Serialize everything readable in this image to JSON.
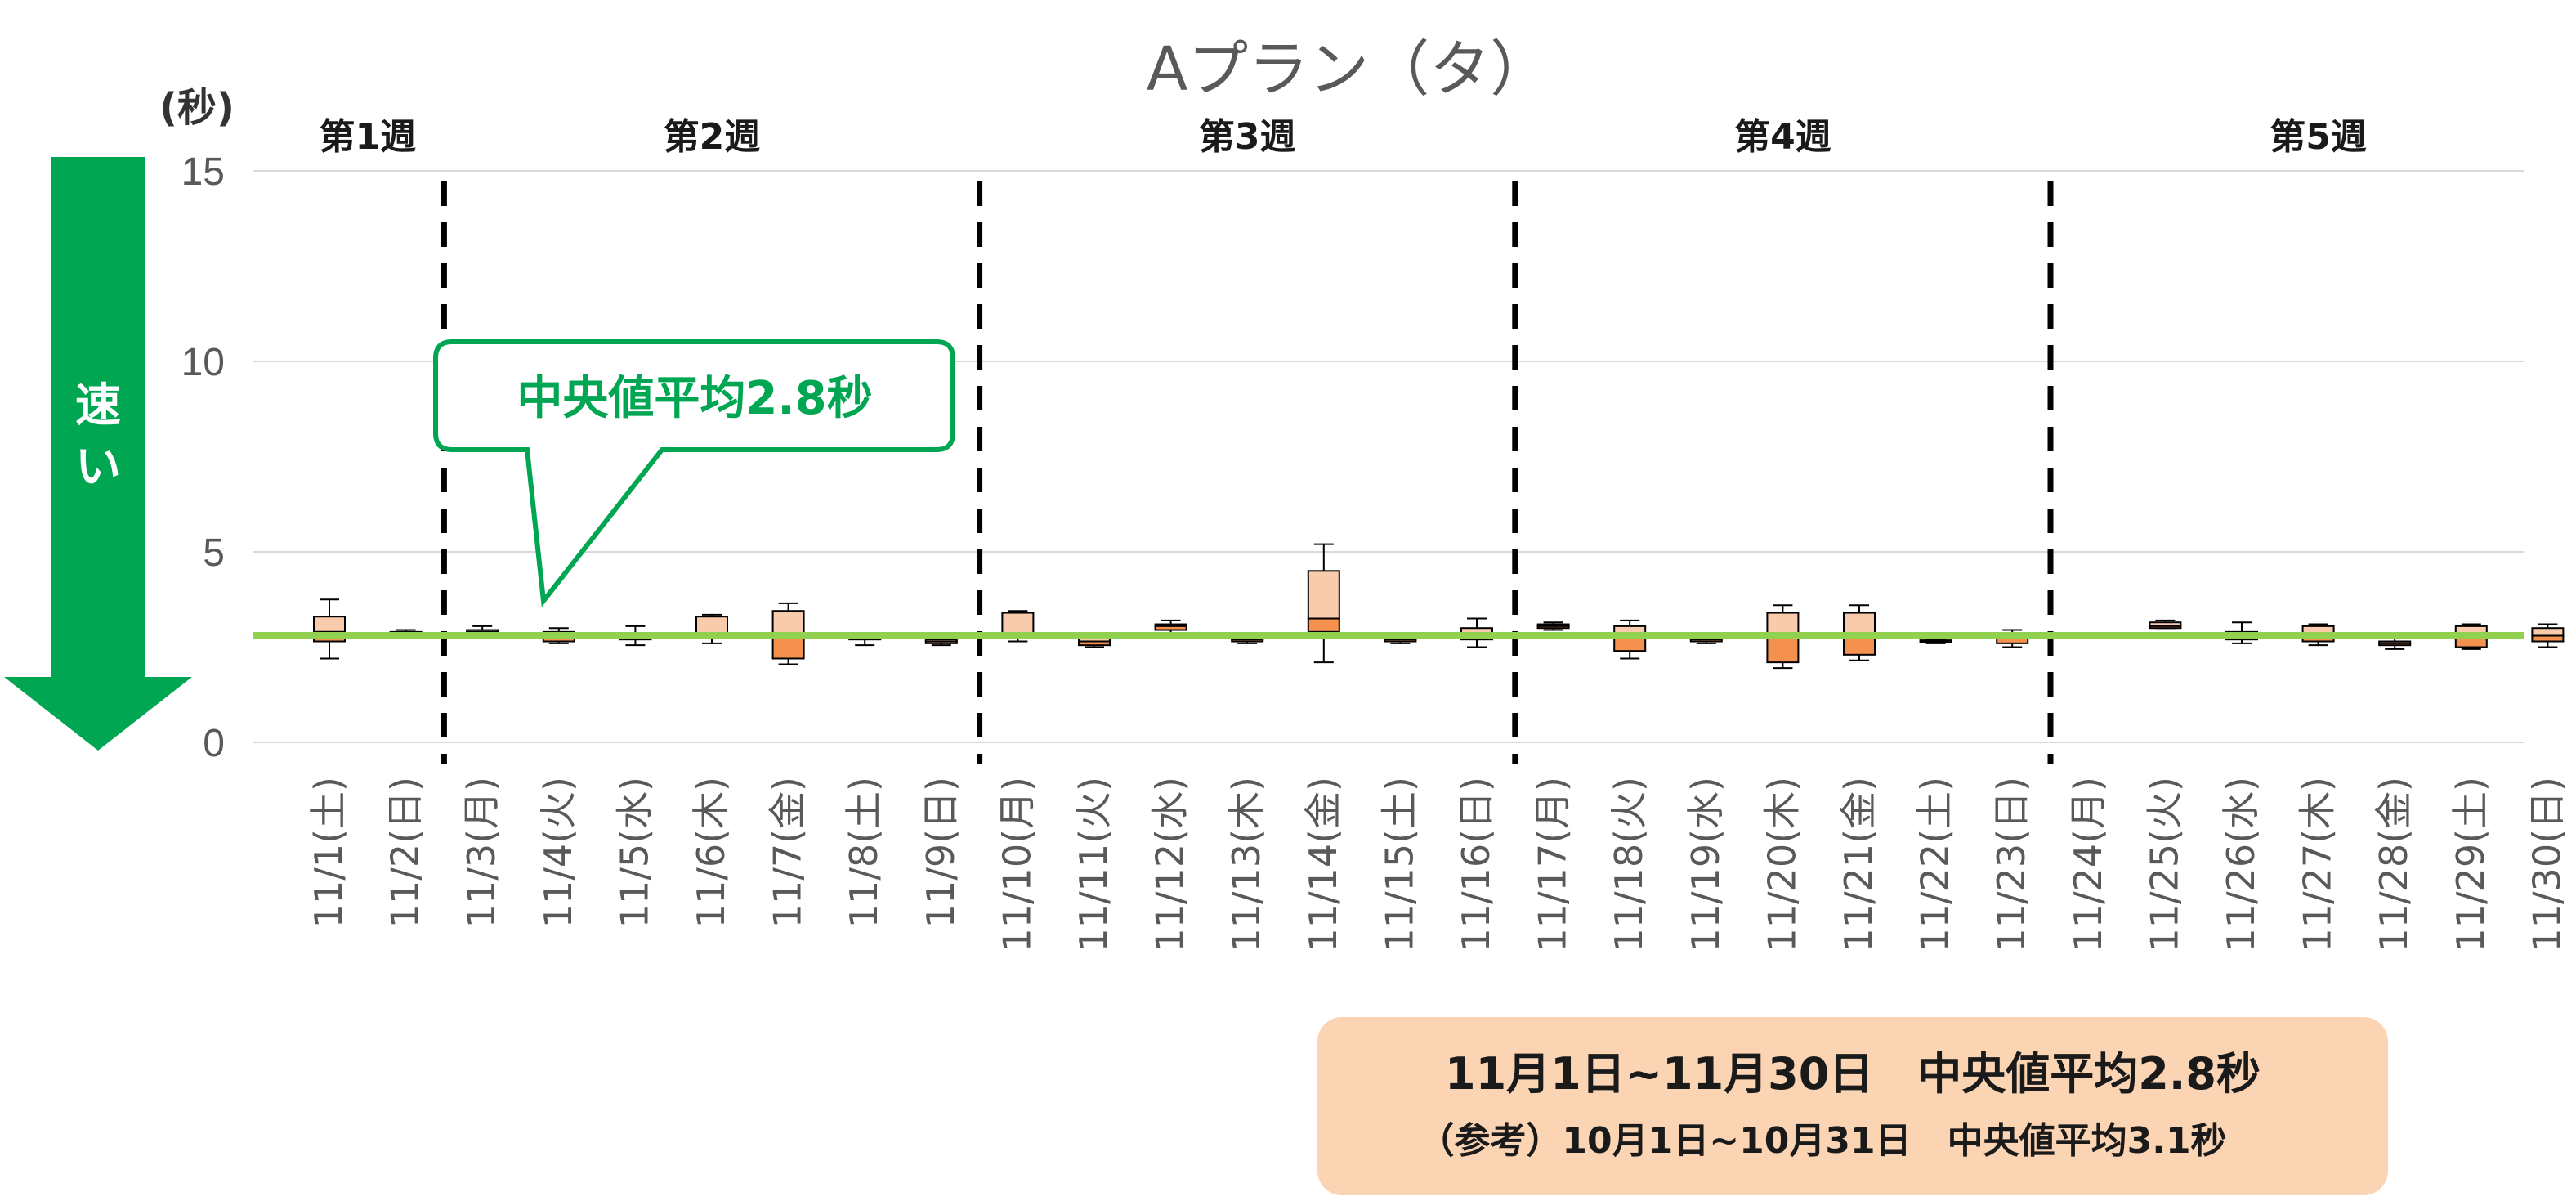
{
  "chart_data": {
    "type": "box",
    "title": "Aプラン（タ）",
    "ylabel": "(秒)",
    "ylim": [
      0,
      15
    ],
    "yticks": [
      "0",
      "5",
      "10",
      "15"
    ],
    "grid": true,
    "categories": [
      "11/1(土)",
      "11/2(日)",
      "11/3(月)",
      "11/4(火)",
      "11/5(水)",
      "11/6(木)",
      "11/7(金)",
      "11/8(土)",
      "11/9(日)",
      "11/10(月)",
      "11/11(火)",
      "11/12(水)",
      "11/13(木)",
      "11/14(金)",
      "11/15(土)",
      "11/16(日)",
      "11/17(月)",
      "11/18(火)",
      "11/19(水)",
      "11/20(木)",
      "11/21(金)",
      "11/22(土)",
      "11/23(日)",
      "11/24(月)",
      "11/25(火)",
      "11/26(水)",
      "11/27(木)",
      "11/28(金)",
      "11/29(土)",
      "11/30(日)"
    ],
    "boxes": [
      {
        "min": 2.2,
        "q1": 2.65,
        "median": 2.9,
        "q3": 3.3,
        "max": 3.75
      },
      {
        "min": 2.75,
        "q1": 2.8,
        "median": 2.85,
        "q3": 2.9,
        "max": 2.95
      },
      {
        "min": 2.75,
        "q1": 2.85,
        "median": 2.9,
        "q3": 2.95,
        "max": 3.05
      },
      {
        "min": 2.6,
        "q1": 2.65,
        "median": 2.8,
        "q3": 2.9,
        "max": 3.0
      },
      {
        "min": 2.55,
        "q1": 2.7,
        "median": 2.8,
        "q3": 2.85,
        "max": 3.05
      },
      {
        "min": 2.6,
        "q1": 2.75,
        "median": 2.85,
        "q3": 3.3,
        "max": 3.35
      },
      {
        "min": 2.05,
        "q1": 2.2,
        "median": 2.85,
        "q3": 3.45,
        "max": 3.65
      },
      {
        "min": 2.55,
        "q1": 2.7,
        "median": 2.75,
        "q3": 2.8,
        "max": 2.85
      },
      {
        "min": 2.55,
        "q1": 2.6,
        "median": 2.65,
        "q3": 2.7,
        "max": 2.75
      },
      {
        "min": 2.65,
        "q1": 2.75,
        "median": 2.85,
        "q3": 3.4,
        "max": 3.45
      },
      {
        "min": 2.5,
        "q1": 2.55,
        "median": 2.65,
        "q3": 2.8,
        "max": 2.85
      },
      {
        "min": 2.85,
        "q1": 2.95,
        "median": 3.05,
        "q3": 3.1,
        "max": 3.2
      },
      {
        "min": 2.6,
        "q1": 2.65,
        "median": 2.7,
        "q3": 2.75,
        "max": 2.8
      },
      {
        "min": 2.1,
        "q1": 2.9,
        "median": 3.25,
        "q3": 4.5,
        "max": 5.2
      },
      {
        "min": 2.6,
        "q1": 2.65,
        "median": 2.7,
        "q3": 2.75,
        "max": 2.8
      },
      {
        "min": 2.5,
        "q1": 2.7,
        "median": 2.85,
        "q3": 3.0,
        "max": 3.25
      },
      {
        "min": 2.95,
        "q1": 3.0,
        "median": 3.05,
        "q3": 3.1,
        "max": 3.15
      },
      {
        "min": 2.2,
        "q1": 2.4,
        "median": 2.75,
        "q3": 3.05,
        "max": 3.2
      },
      {
        "min": 2.6,
        "q1": 2.65,
        "median": 2.7,
        "q3": 2.75,
        "max": 2.8
      },
      {
        "min": 1.95,
        "q1": 2.1,
        "median": 2.85,
        "q3": 3.4,
        "max": 3.6
      },
      {
        "min": 2.15,
        "q1": 2.3,
        "median": 2.85,
        "q3": 3.4,
        "max": 3.6
      },
      {
        "min": 2.6,
        "q1": 2.62,
        "median": 2.65,
        "q3": 2.68,
        "max": 2.7
      },
      {
        "min": 2.5,
        "q1": 2.6,
        "median": 2.75,
        "q3": 2.85,
        "max": 2.95
      },
      null,
      {
        "min": 3.0,
        "q1": 3.0,
        "median": 3.05,
        "q3": 3.15,
        "max": 3.2
      },
      {
        "min": 2.6,
        "q1": 2.7,
        "median": 2.8,
        "q3": 2.9,
        "max": 3.15
      },
      {
        "min": 2.55,
        "q1": 2.65,
        "median": 2.85,
        "q3": 3.05,
        "max": 3.1
      },
      {
        "min": 2.45,
        "q1": 2.55,
        "median": 2.6,
        "q3": 2.65,
        "max": 2.75
      },
      {
        "min": 2.45,
        "q1": 2.5,
        "median": 2.75,
        "q3": 3.05,
        "max": 3.1
      },
      {
        "min": 2.5,
        "q1": 2.65,
        "median": 2.8,
        "q3": 3.0,
        "max": 3.1
      }
    ],
    "average_line": 2.8,
    "weeks": [
      {
        "label": "第1週",
        "start": 0,
        "end": 1
      },
      {
        "label": "第2週",
        "start": 2,
        "end": 8
      },
      {
        "label": "第3週",
        "start": 9,
        "end": 15
      },
      {
        "label": "第4週",
        "start": 16,
        "end": 22
      },
      {
        "label": "第5週",
        "start": 23,
        "end": 29
      }
    ],
    "week_dividers_after": [
      1,
      8,
      15,
      22
    ]
  },
  "arrow_label": [
    "速",
    "い"
  ],
  "callout": "中央値平均2.8秒",
  "summary": {
    "line1": "11月1日~11月30日　中央値平均2.8秒",
    "line2": "（参考）10月1日~10月31日　中央値平均3.1秒"
  },
  "colors": {
    "box_upper": "#f8cbad",
    "box_lower": "#f4914e",
    "average_line": "#92d050",
    "arrow": "#00a651",
    "callout_border": "#00a651",
    "summary_bg": "#fbd4b4",
    "grid": "#d9d9d9"
  }
}
